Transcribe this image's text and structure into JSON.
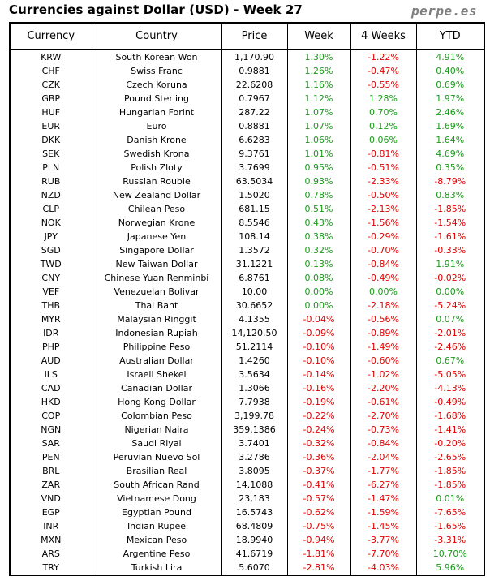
{
  "header": {
    "title": "Currencies against Dollar (USD) - Week 27",
    "brand": "perpe.es"
  },
  "columns": [
    "Currency",
    "Country",
    "Price",
    "Week",
    "4 Weeks",
    "YTD"
  ],
  "rows": [
    [
      "KRW",
      "South Korean Won",
      "1,170.90",
      "1.30%",
      "-1.22%",
      "4.91%"
    ],
    [
      "CHF",
      "Swiss Franc",
      "0.9881",
      "1.26%",
      "-0.47%",
      "0.40%"
    ],
    [
      "CZK",
      "Czech Koruna",
      "22.6208",
      "1.16%",
      "-0.55%",
      "0.69%"
    ],
    [
      "GBP",
      "Pound Sterling",
      "0.7967",
      "1.12%",
      "1.28%",
      "1.97%"
    ],
    [
      "HUF",
      "Hungarian Forint",
      "287.22",
      "1.07%",
      "0.70%",
      "2.46%"
    ],
    [
      "EUR",
      "Euro",
      "0.8881",
      "1.07%",
      "0.12%",
      "1.69%"
    ],
    [
      "DKK",
      "Danish Krone",
      "6.6283",
      "1.06%",
      "0.06%",
      "1.64%"
    ],
    [
      "SEK",
      "Swedish Krona",
      "9.3761",
      "1.01%",
      "-0.81%",
      "4.69%"
    ],
    [
      "PLN",
      "Polish Zloty",
      "3.7699",
      "0.95%",
      "-0.51%",
      "0.35%"
    ],
    [
      "RUB",
      "Russian Rouble",
      "63.5034",
      "0.93%",
      "-2.33%",
      "-8.79%"
    ],
    [
      "NZD",
      "New Zealand Dollar",
      "1.5020",
      "0.78%",
      "-0.50%",
      "0.83%"
    ],
    [
      "CLP",
      "Chilean Peso",
      "681.15",
      "0.51%",
      "-2.13%",
      "-1.85%"
    ],
    [
      "NOK",
      "Norwegian Krone",
      "8.5546",
      "0.43%",
      "-1.56%",
      "-1.54%"
    ],
    [
      "JPY",
      "Japanese Yen",
      "108.14",
      "0.38%",
      "-0.29%",
      "-1.61%"
    ],
    [
      "SGD",
      "Singapore Dollar",
      "1.3572",
      "0.32%",
      "-0.70%",
      "-0.33%"
    ],
    [
      "TWD",
      "New Taiwan Dollar",
      "31.1221",
      "0.13%",
      "-0.84%",
      "1.91%"
    ],
    [
      "CNY",
      "Chinese Yuan Renminbi",
      "6.8761",
      "0.08%",
      "-0.49%",
      "-0.02%"
    ],
    [
      "VEF",
      "Venezuelan Bolivar",
      "10.00",
      "0.00%",
      "0.00%",
      "0.00%"
    ],
    [
      "THB",
      "Thai Baht",
      "30.6652",
      "0.00%",
      "-2.18%",
      "-5.24%"
    ],
    [
      "MYR",
      "Malaysian Ringgit",
      "4.1355",
      "-0.04%",
      "-0.56%",
      "0.07%"
    ],
    [
      "IDR",
      "Indonesian Rupiah",
      "14,120.50",
      "-0.09%",
      "-0.89%",
      "-2.01%"
    ],
    [
      "PHP",
      "Philippine Peso",
      "51.2114",
      "-0.10%",
      "-1.49%",
      "-2.46%"
    ],
    [
      "AUD",
      "Australian Dollar",
      "1.4260",
      "-0.10%",
      "-0.60%",
      "0.67%"
    ],
    [
      "ILS",
      "Israeli Shekel",
      "3.5634",
      "-0.14%",
      "-1.02%",
      "-5.05%"
    ],
    [
      "CAD",
      "Canadian Dollar",
      "1.3066",
      "-0.16%",
      "-2.20%",
      "-4.13%"
    ],
    [
      "HKD",
      "Hong Kong Dollar",
      "7.7938",
      "-0.19%",
      "-0.61%",
      "-0.49%"
    ],
    [
      "COP",
      "Colombian Peso",
      "3,199.78",
      "-0.22%",
      "-2.70%",
      "-1.68%"
    ],
    [
      "NGN",
      "Nigerian Naira",
      "359.1386",
      "-0.24%",
      "-0.73%",
      "-1.41%"
    ],
    [
      "SAR",
      "Saudi Riyal",
      "3.7401",
      "-0.32%",
      "-0.84%",
      "-0.20%"
    ],
    [
      "PEN",
      "Peruvian Nuevo Sol",
      "3.2786",
      "-0.36%",
      "-2.04%",
      "-2.65%"
    ],
    [
      "BRL",
      "Brasilian Real",
      "3.8095",
      "-0.37%",
      "-1.77%",
      "-1.85%"
    ],
    [
      "ZAR",
      "South African Rand",
      "14.1088",
      "-0.41%",
      "-6.27%",
      "-1.85%"
    ],
    [
      "VND",
      "Vietnamese Dong",
      "23,183",
      "-0.57%",
      "-1.47%",
      "0.01%"
    ],
    [
      "EGP",
      "Egyptian Pound",
      "16.5743",
      "-0.62%",
      "-1.59%",
      "-7.65%"
    ],
    [
      "INR",
      "Indian Rupee",
      "68.4809",
      "-0.75%",
      "-1.45%",
      "-1.65%"
    ],
    [
      "MXN",
      "Mexican Peso",
      "18.9940",
      "-0.94%",
      "-3.77%",
      "-3.31%"
    ],
    [
      "ARS",
      "Argentine Peso",
      "41.6719",
      "-1.81%",
      "-7.70%",
      "10.70%"
    ],
    [
      "TRY",
      "Turkish Lira",
      "5.6070",
      "-2.81%",
      "-4.03%",
      "5.96%"
    ]
  ],
  "colors": {
    "positive": "#1a9a1a",
    "negative": "#e00000"
  }
}
